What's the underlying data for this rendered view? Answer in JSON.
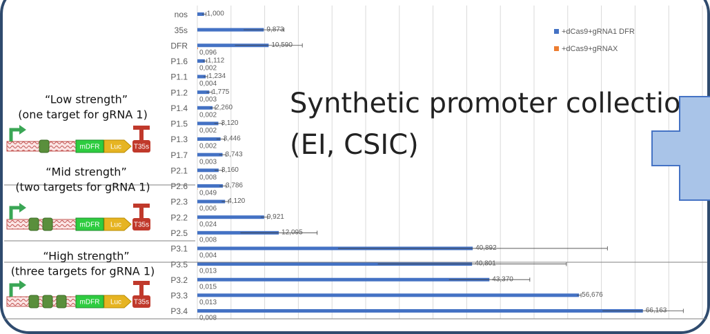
{
  "chart_data": {
    "type": "bar",
    "orientation": "horizontal",
    "categories": [
      "nos",
      "35s",
      "DFR",
      "P1.6",
      "P1.1",
      "P1.2",
      "P1.4",
      "P1.5",
      "P1.3",
      "P1.7",
      "P2.1",
      "P2.6",
      "P2.3",
      "P2.2",
      "P2.5",
      "P3.1",
      "P3.5",
      "P3.2",
      "P3.3",
      "P3.4"
    ],
    "series": [
      {
        "name": "+dCas9+gRNA1 DFR",
        "color": "#4472c4",
        "values": [
          1.0,
          9.873,
          10.59,
          1.112,
          1.234,
          1.775,
          2.26,
          3.12,
          3.446,
          3.743,
          3.16,
          3.786,
          4.12,
          9.921,
          12.095,
          40.892,
          40.801,
          43.37,
          56.676,
          66.163
        ],
        "value_labels": [
          "1,000",
          "9,873",
          "10,590",
          "1,112",
          "1,234",
          "1,775",
          "2,260",
          "3,120",
          "3,446",
          "3,743",
          "3,160",
          "3,786",
          "4,120",
          "9,921",
          "12,095",
          "40,892",
          "40,801",
          "43,370",
          "56,676",
          "66,163"
        ],
        "errors": [
          0.3,
          3,
          5,
          0.3,
          0.3,
          0.4,
          0.4,
          0.6,
          0.6,
          0.5,
          0.6,
          0.5,
          0.5,
          0.5,
          5.7,
          20,
          14,
          6,
          0.3,
          6
        ]
      },
      {
        "name": "+dCas9+gRNAX",
        "color": "#ed7d31",
        "values": [
          null,
          null,
          0.096,
          0.002,
          0.004,
          0.003,
          0.002,
          0.002,
          0.002,
          0.003,
          0.008,
          0.049,
          0.006,
          0.024,
          0.008,
          0.004,
          0.013,
          0.015,
          0.013,
          0.008
        ],
        "value_labels": [
          null,
          null,
          "0,096",
          "0,002",
          "0,004",
          "0,003",
          "0,002",
          "0,002",
          "0,002",
          "0,003",
          "0,008",
          "0,049",
          "0,006",
          "0,024",
          "0,008",
          "0,004",
          "0,013",
          "0,015",
          "0,013",
          "0,008"
        ]
      }
    ],
    "xlim": [
      0,
      75
    ],
    "xticks": [
      0,
      5,
      10,
      15,
      20,
      25,
      30,
      35,
      40,
      45,
      50,
      55,
      60,
      65,
      70,
      75
    ],
    "grid": true,
    "legend": "top-right"
  },
  "slide": {
    "title_lines": [
      "Synthetic promoter collection",
      "(EI, CSIC)"
    ],
    "groups": [
      {
        "title": "“Low strength”",
        "subtitle": "(one target for gRNA 1)",
        "parts": [
          "mDFR",
          "Luc",
          "T35s"
        ]
      },
      {
        "title": "“Mid strength”",
        "subtitle": "(two targets for gRNA 1)",
        "parts": [
          "mDFR",
          "Luc",
          "T35s"
        ]
      },
      {
        "title": "“High strength”",
        "subtitle": "(three targets for gRNA 1)",
        "parts": [
          "mDFR",
          "Luc",
          "T35s"
        ]
      }
    ]
  }
}
